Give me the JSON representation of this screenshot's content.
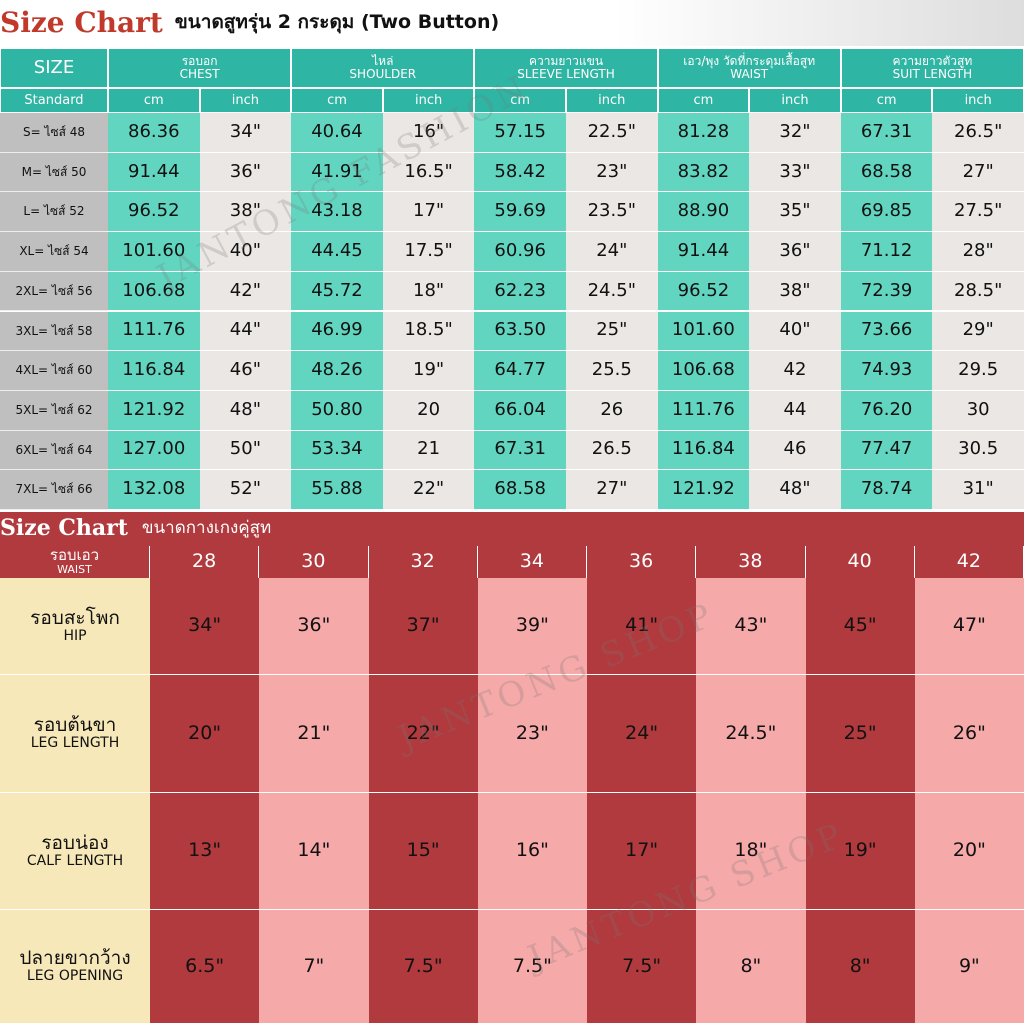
{
  "top": {
    "title": "Size Chart",
    "subtitle": "ขนาดสูทรุ่น 2 กระดุม (Two Button)",
    "size_header": "SIZE",
    "standard": "Standard",
    "units": [
      "cm",
      "inch"
    ],
    "groups": [
      {
        "thai": "รอบอก",
        "en": "CHEST"
      },
      {
        "thai": "ไหล่",
        "en": "SHOULDER"
      },
      {
        "thai": "ความยาวแขน",
        "en": "SLEEVE LENGTH"
      },
      {
        "thai": "เอว/พุง วัดที่กระดุมเสื้อสูท",
        "en": "WAIST"
      },
      {
        "thai": "ความยาวตัวสูท",
        "en": "SUIT LENGTH"
      }
    ],
    "rows": [
      [
        "S= ไซส์ 48",
        "86.36",
        "34\"",
        "40.64",
        "16\"",
        "57.15",
        "22.5\"",
        "81.28",
        "32\"",
        "67.31",
        "26.5\""
      ],
      [
        "M= ไซส์ 50",
        "91.44",
        "36\"",
        "41.91",
        "16.5\"",
        "58.42",
        "23\"",
        "83.82",
        "33\"",
        "68.58",
        "27\""
      ],
      [
        "L= ไซส์ 52",
        "96.52",
        "38\"",
        "43.18",
        "17\"",
        "59.69",
        "23.5\"",
        "88.90",
        "35\"",
        "69.85",
        "27.5\""
      ],
      [
        "XL= ไซส์ 54",
        "101.60",
        "40\"",
        "44.45",
        "17.5\"",
        "60.96",
        "24\"",
        "91.44",
        "36\"",
        "71.12",
        "28\""
      ],
      [
        "2XL= ไซส์ 56",
        "106.68",
        "42\"",
        "45.72",
        "18\"",
        "62.23",
        "24.5\"",
        "96.52",
        "38\"",
        "72.39",
        "28.5\""
      ],
      [
        "3XL= ไซส์ 58",
        "111.76",
        "44\"",
        "46.99",
        "18.5\"",
        "63.50",
        "25\"",
        "101.60",
        "40\"",
        "73.66",
        "29\""
      ],
      [
        "4XL= ไซส์ 60",
        "116.84",
        "46\"",
        "48.26",
        "19\"",
        "64.77",
        "25.5",
        "106.68",
        "42",
        "74.93",
        "29.5"
      ],
      [
        "5XL= ไซส์ 62",
        "121.92",
        "48\"",
        "50.80",
        "20",
        "66.04",
        "26",
        "111.76",
        "44",
        "76.20",
        "30"
      ],
      [
        "6XL= ไซส์ 64",
        "127.00",
        "50\"",
        "53.34",
        "21",
        "67.31",
        "26.5",
        "116.84",
        "46",
        "77.47",
        "30.5"
      ],
      [
        "7XL= ไซส์ 66",
        "132.08",
        "52\"",
        "55.88",
        "22\"",
        "68.58",
        "27\"",
        "121.92",
        "48\"",
        "78.74",
        "31\""
      ]
    ]
  },
  "bottom": {
    "title": "Size Chart",
    "subtitle": "ขนาดกางเกงคู่สูท",
    "header": {
      "thai": "รอบเอว",
      "en": "WAIST",
      "sizes": [
        "28",
        "30",
        "32",
        "34",
        "36",
        "38",
        "40",
        "42"
      ]
    },
    "rows": [
      {
        "thai": "รอบสะโพก",
        "en": "HIP",
        "values": [
          "34\"",
          "36\"",
          "37\"",
          "39\"",
          "41\"",
          "43\"",
          "45\"",
          "47\""
        ]
      },
      {
        "thai": "รอบต้นขา",
        "en": "LEG LENGTH",
        "values": [
          "20\"",
          "21\"",
          "22\"",
          "23\"",
          "24\"",
          "24.5\"",
          "25\"",
          "26\""
        ]
      },
      {
        "thai": "รอบน่อง",
        "en": "CALF LENGTH",
        "values": [
          "13\"",
          "14\"",
          "15\"",
          "16\"",
          "17\"",
          "18\"",
          "19\"",
          "20\""
        ]
      },
      {
        "thai": "ปลายขากว้าง",
        "en": "LEG OPENING",
        "values": [
          "6.5\"",
          "7\"",
          "7.5\"",
          "7.5\"",
          "7.5\"",
          "8\"",
          "8\"",
          "9\""
        ]
      }
    ]
  },
  "watermarks": [
    "JANTONG FASHION",
    "JANTONG SHOP"
  ]
}
